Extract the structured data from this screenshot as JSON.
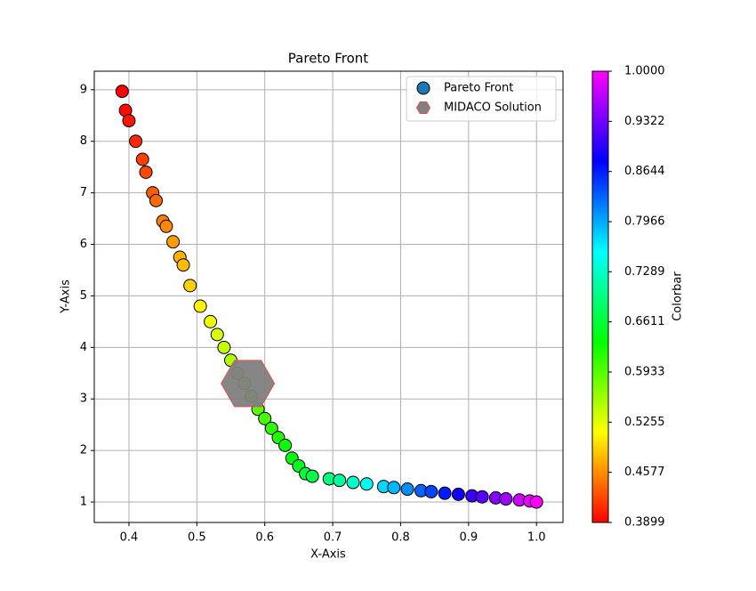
{
  "chart_data": {
    "type": "scatter",
    "title": "Pareto Front",
    "xlabel": "X-Axis",
    "ylabel": "Y-Axis",
    "xlim": [
      0.349,
      1.039
    ],
    "ylim": [
      0.603,
      9.36
    ],
    "xticks": [
      0.4,
      0.5,
      0.6,
      0.7,
      0.8,
      0.9,
      {
        "value": 1.0,
        "label": "1.0"
      }
    ],
    "yticks": [
      1,
      2,
      3,
      4,
      5,
      6,
      7,
      8,
      9
    ],
    "grid": true,
    "legend": "upper right",
    "series": [
      {
        "name": "Pareto Front",
        "color": "#1f77b4",
        "marker": "circle",
        "x": [
          0.39,
          0.395,
          0.4,
          0.41,
          0.42,
          0.425,
          0.435,
          0.44,
          0.45,
          0.455,
          0.465,
          0.475,
          0.48,
          0.49,
          0.505,
          0.52,
          0.53,
          0.54,
          0.55,
          0.56,
          0.57,
          0.58,
          0.59,
          0.6,
          0.61,
          0.62,
          0.63,
          0.64,
          0.65,
          0.66,
          0.67,
          0.695,
          0.71,
          0.73,
          0.75,
          0.775,
          0.79,
          0.81,
          0.83,
          0.845,
          0.865,
          0.885,
          0.905,
          0.92,
          0.94,
          0.955,
          0.975,
          0.99,
          1.0
        ],
        "y": [
          8.97,
          8.6,
          8.4,
          8.0,
          7.65,
          7.4,
          7.0,
          6.85,
          6.45,
          6.35,
          6.05,
          5.75,
          5.6,
          5.2,
          4.8,
          4.5,
          4.25,
          4.0,
          3.75,
          3.5,
          3.3,
          3.05,
          2.8,
          2.62,
          2.43,
          2.25,
          2.1,
          1.85,
          1.7,
          1.55,
          1.5,
          1.45,
          1.42,
          1.38,
          1.35,
          1.3,
          1.28,
          1.25,
          1.22,
          1.2,
          1.17,
          1.15,
          1.12,
          1.1,
          1.08,
          1.06,
          1.04,
          1.02,
          1.0
        ]
      },
      {
        "name": "MIDACO Solution",
        "color": "#808080",
        "edgecolor": "#e05050",
        "marker": "hexagon",
        "x": [
          0.575
        ],
        "y": [
          3.3
        ]
      }
    ],
    "colorbar": {
      "label": "Colorbar",
      "colormap": "gist_rainbow",
      "clim": [
        0.3899,
        1.0
      ],
      "ticks": [
        0.3899,
        0.4577,
        0.5255,
        0.5933,
        0.6611,
        0.7289,
        0.7966,
        0.8644,
        0.9322,
        {
          "value": 1.0,
          "label": "1.0000"
        }
      ]
    }
  }
}
